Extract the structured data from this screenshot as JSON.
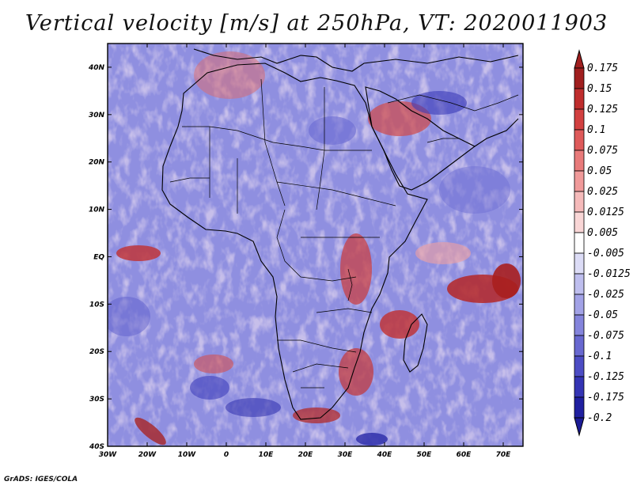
{
  "title": "Vertical velocity [m/s] at 250hPa, VT: 2020011903",
  "credit": "GrADS: IGES/COLA",
  "map": {
    "lon_ticks": [
      "30W",
      "20W",
      "10W",
      "0",
      "10E",
      "20E",
      "30E",
      "40E",
      "50E",
      "60E",
      "70E"
    ],
    "lat_ticks": [
      "40N",
      "30N",
      "20N",
      "10N",
      "EQ",
      "10S",
      "20S",
      "30S",
      "40S"
    ],
    "lon_range": [
      -30,
      75
    ],
    "lat_range": [
      -40,
      45
    ]
  },
  "colorbar": {
    "levels": [
      "0.175",
      "0.15",
      "0.125",
      "0.1",
      "0.075",
      "0.05",
      "0.025",
      "0.0125",
      "0.005",
      "-0.005",
      "-0.0125",
      "-0.025",
      "-0.05",
      "-0.075",
      "-0.1",
      "-0.125",
      "-0.175",
      "-0.2"
    ],
    "colors": [
      "#a01f1f",
      "#bf2d2d",
      "#d24040",
      "#de5a5a",
      "#e87a7a",
      "#f09a9a",
      "#f5baba",
      "#f9d6d6",
      "#ffffff",
      "#dcdcf6",
      "#bebeee",
      "#a2a2e6",
      "#8484dc",
      "#6868d0",
      "#4c4cc4",
      "#3434b4",
      "#2020a0"
    ],
    "top_color": "#a01f1f",
    "bottom_color": "#1c1c96"
  }
}
